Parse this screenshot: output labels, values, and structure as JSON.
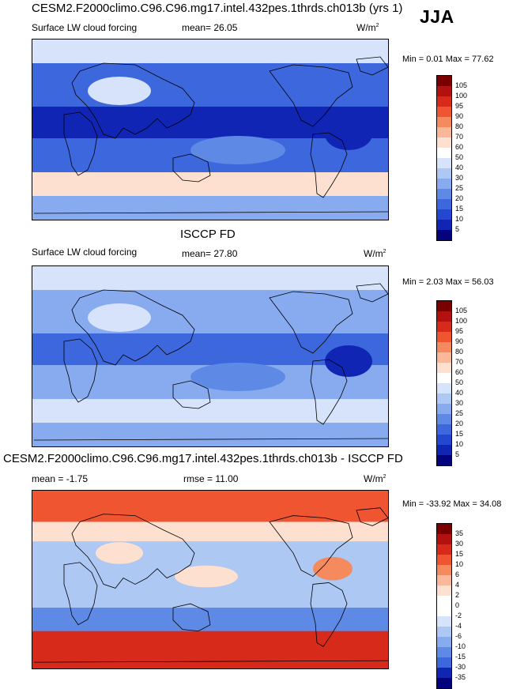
{
  "season": "JJA",
  "panels": [
    {
      "id": "model",
      "title": "CESM2.F2000climo.C96.C96.mg17.intel.432pes.1thrds.ch013b (yrs 1)",
      "left_label": "Surface LW cloud forcing",
      "stat_text": "mean=  26.05",
      "stat2_text": "",
      "units": "W/m",
      "units_sup": "2",
      "minmax": "Min =  0.01 Max =  77.62",
      "colorbar_labels": [
        "105",
        "100",
        "95",
        "90",
        "80",
        "70",
        "60",
        "50",
        "40",
        "30",
        "25",
        "20",
        "15",
        "10",
        "5"
      ],
      "colors": [
        "#7a0000",
        "#b31010",
        "#d82a1a",
        "#ef5530",
        "#f58a5e",
        "#f9b899",
        "#fde0cf",
        "#ffffff",
        "#d6e3fa",
        "#aec8f4",
        "#87abee",
        "#5e8ae6",
        "#3d68dd",
        "#2447cf",
        "#1125b5",
        "#03037d"
      ]
    },
    {
      "id": "obs",
      "title": "ISCCP FD",
      "left_label": "Surface LW cloud forcing",
      "stat_text": "mean=  27.80",
      "stat2_text": "",
      "units": "W/m",
      "units_sup": "2",
      "minmax": "Min =  2.03 Max =  56.03",
      "colorbar_labels": [
        "105",
        "100",
        "95",
        "90",
        "80",
        "70",
        "60",
        "50",
        "40",
        "30",
        "25",
        "20",
        "15",
        "10",
        "5"
      ],
      "colors": [
        "#7a0000",
        "#b31010",
        "#d82a1a",
        "#ef5530",
        "#f58a5e",
        "#f9b899",
        "#fde0cf",
        "#ffffff",
        "#d6e3fa",
        "#aec8f4",
        "#87abee",
        "#5e8ae6",
        "#3d68dd",
        "#2447cf",
        "#1125b5",
        "#03037d"
      ]
    },
    {
      "id": "diff",
      "title": "CESM2.F2000climo.C96.C96.mg17.intel.432pes.1thrds.ch013b - ISCCP FD",
      "left_label": "",
      "stat_text": "mean =  -1.75",
      "stat2_text": "rmse =  11.00",
      "units": "W/m",
      "units_sup": "2",
      "minmax": "Min = -33.92 Max =  34.08",
      "colorbar_labels": [
        "35",
        "30",
        "15",
        "10",
        "6",
        "4",
        "2",
        "0",
        "-2",
        "-4",
        "-6",
        "-10",
        "-15",
        "-30",
        "-35"
      ],
      "colors": [
        "#7a0000",
        "#b31010",
        "#d82a1a",
        "#ef5530",
        "#f58a5e",
        "#f9b899",
        "#fde0cf",
        "#ffffff",
        "#ffffff",
        "#d6e3fa",
        "#aec8f4",
        "#87abee",
        "#5e8ae6",
        "#3d68dd",
        "#1125b5",
        "#03037d"
      ]
    }
  ]
}
